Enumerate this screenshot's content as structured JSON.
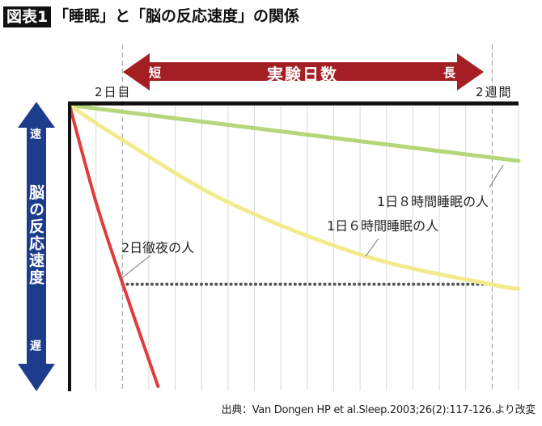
{
  "header": {
    "badge": "図表1",
    "title": "「睡眠」と「脳の反応速度」の関係"
  },
  "chart_data": {
    "type": "line",
    "title": "「睡眠」と「脳の反応速度」の関係",
    "xlabel": "実験日数",
    "x_arrow": {
      "left": "短",
      "right": "長"
    },
    "ylabel": "脳の反応速度",
    "y_arrow": {
      "top": "速",
      "bottom": "遅"
    },
    "x_tick_labels": [
      {
        "x": 2,
        "label": "2日目"
      },
      {
        "x": 16,
        "label": "2週間"
      }
    ],
    "xlim": [
      0,
      17
    ],
    "ylim": [
      0,
      100
    ],
    "grid": true,
    "series": [
      {
        "name": "1日８時間睡眠の人",
        "color": "#b5d67a",
        "points": [
          [
            0,
            99.4
          ],
          [
            17,
            80
          ]
        ]
      },
      {
        "name": "1日６時間睡眠の人",
        "color": "#f2eb8e",
        "points": [
          [
            0,
            99.4
          ],
          [
            2,
            87.3
          ],
          [
            6,
            65.6
          ],
          [
            11.2,
            46.8
          ],
          [
            16,
            36.9
          ],
          [
            17,
            35.5
          ]
        ]
      },
      {
        "name": "2日徹夜の人",
        "color": "#e03c3c",
        "points": [
          [
            0,
            99.4
          ],
          [
            1,
            65.6
          ],
          [
            2,
            37.5
          ],
          [
            3.35,
            1.4
          ]
        ]
      }
    ],
    "reference_line": {
      "y": 37,
      "x": [
        2,
        16
      ],
      "color": "#555555",
      "style": "dotted"
    }
  },
  "colors": {
    "x_arrow": "#a31f24",
    "y_arrow": "#1e3c8c",
    "frame": "#111111"
  },
  "source": "出典：Van Dongen HP et al.Sleep.2003;26(2):117-126.より改変"
}
